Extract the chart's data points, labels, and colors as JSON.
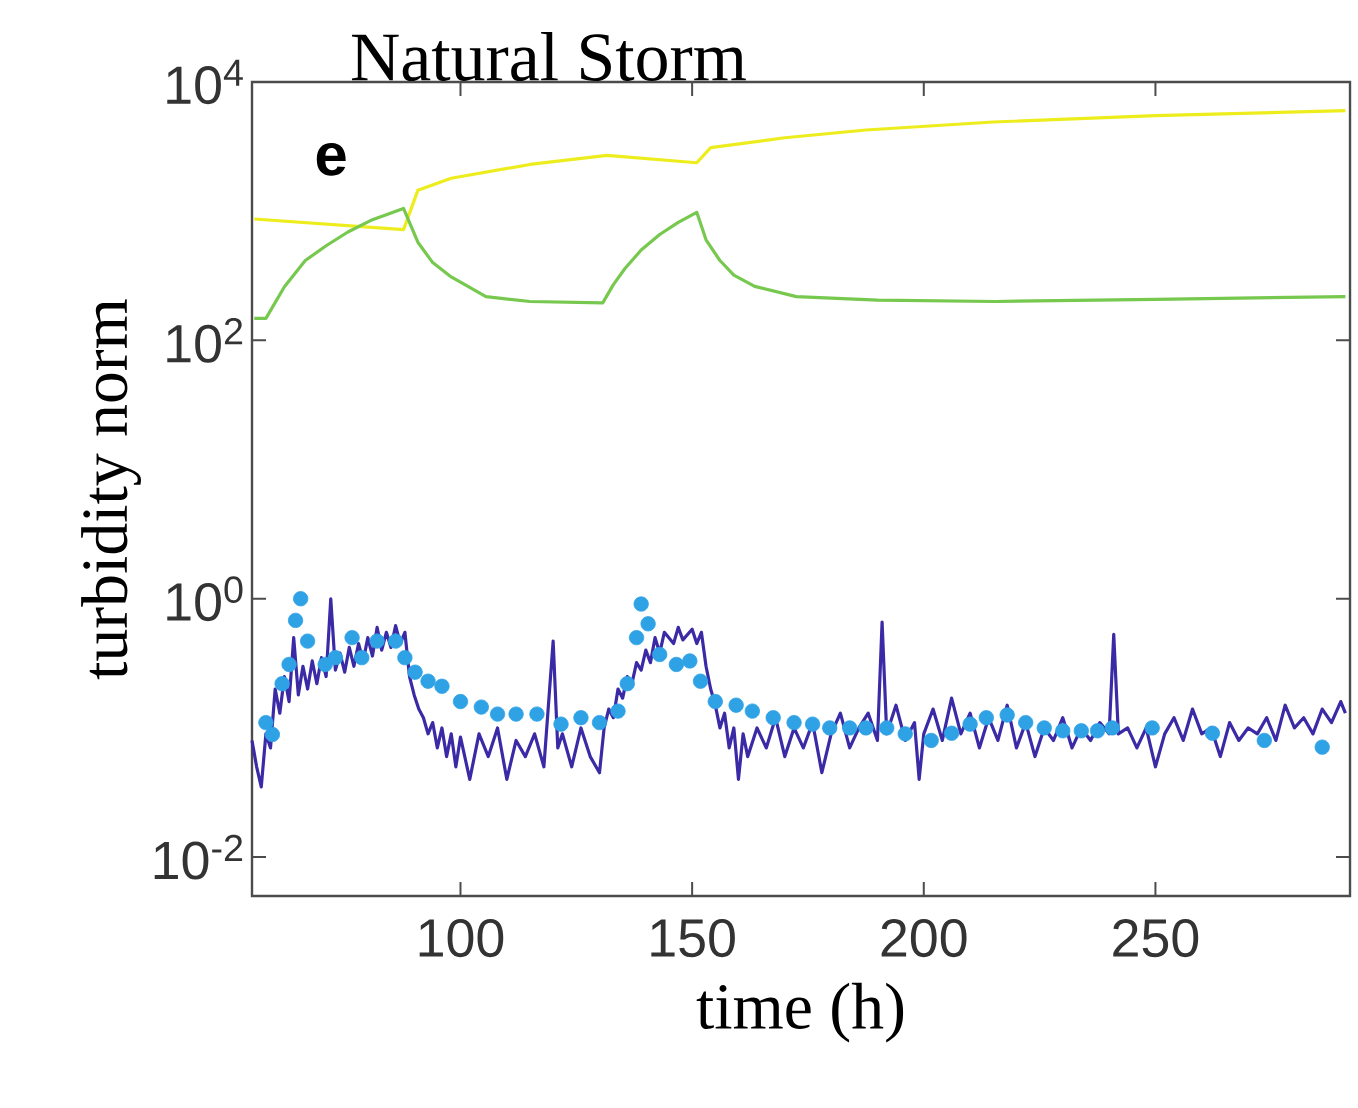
{
  "chart_data": {
    "type": "line",
    "title": "Natural Storm",
    "xlabel": "time (h)",
    "ylabel": "turbidity norm",
    "annotations": [
      "e"
    ],
    "log": "y",
    "grid": false,
    "xlim": [
      55,
      292
    ],
    "ylim": [
      0.005,
      10000
    ],
    "xticks": [
      100,
      150,
      200,
      250
    ],
    "yticks": [
      {
        "value": 0.01,
        "label": "10$^{-2}$"
      },
      {
        "value": 1,
        "label": "10$^{0}$"
      },
      {
        "value": 100,
        "label": "10$^{2}$"
      },
      {
        "value": 10000,
        "label": "10$^{4}$"
      }
    ],
    "series": [
      {
        "color": "#eded1e",
        "x": [
          55.5,
          87.7,
          90.8,
          98,
          115,
          131.6,
          151,
          154,
          170,
          187.5,
          215,
          250,
          291
        ],
        "values": [
          870,
          720,
          1450,
          1800,
          2300,
          2700,
          2370,
          3100,
          3700,
          4250,
          4900,
          5500,
          6000
        ]
      },
      {
        "color": "#76c84e",
        "x": [
          55.5,
          58,
          62,
          66.5,
          71,
          75.7,
          81,
          87.7,
          90.8,
          94,
          98,
          105.5,
          115,
          130.7,
          133,
          135.5,
          139,
          143,
          147,
          151,
          153,
          156,
          159,
          163.5,
          172.5,
          190,
          215.5,
          250,
          291
        ],
        "values": [
          148,
          148,
          260,
          415,
          540,
          690,
          860,
          1050,
          575,
          400,
          310,
          218,
          200,
          195,
          270,
          360,
          500,
          660,
          820,
          980,
          600,
          415,
          320,
          262,
          218,
          205,
          200,
          208,
          218
        ]
      },
      {
        "color": "#3b2aa6",
        "x": [
          55,
          56,
          57,
          58,
          59,
          60,
          61,
          62,
          63,
          64,
          65,
          66,
          67,
          68,
          69,
          70,
          71,
          72,
          73,
          74,
          75,
          76,
          77,
          78,
          79,
          80,
          81,
          82,
          83,
          84,
          85,
          86,
          87,
          88,
          89,
          90,
          91,
          92,
          93,
          94,
          95,
          96,
          97,
          98,
          99,
          100,
          102,
          104,
          106,
          108,
          110,
          112,
          114,
          116,
          118,
          120,
          121,
          122,
          124,
          126,
          128,
          130,
          131,
          132,
          133,
          134,
          135,
          136,
          137,
          138,
          139,
          140,
          141,
          142,
          143,
          144,
          146,
          147,
          148,
          150,
          151,
          152,
          153,
          154,
          155,
          156,
          157,
          158,
          159,
          160,
          161,
          162,
          164,
          166,
          168,
          170,
          172,
          174,
          176,
          178,
          180,
          182,
          184,
          186,
          188,
          190,
          191,
          192,
          194,
          196,
          198,
          199,
          200,
          202,
          204,
          206,
          208,
          210,
          212,
          214,
          216,
          218,
          220,
          222,
          224,
          226,
          228,
          230,
          232,
          234,
          236,
          238,
          240,
          241,
          242,
          244,
          246,
          248,
          250,
          252,
          254,
          256,
          258,
          260,
          262,
          264,
          266,
          268,
          270,
          272,
          274,
          276,
          278,
          280,
          282,
          284,
          286,
          288,
          290,
          291
        ],
        "values": [
          0.08,
          0.05,
          0.035,
          0.09,
          0.07,
          0.2,
          0.13,
          0.25,
          0.16,
          0.5,
          0.18,
          0.3,
          0.2,
          0.33,
          0.22,
          0.35,
          0.25,
          1.0,
          0.28,
          0.38,
          0.27,
          0.42,
          0.3,
          0.45,
          0.33,
          0.5,
          0.36,
          0.6,
          0.4,
          0.55,
          0.42,
          0.62,
          0.45,
          0.55,
          0.25,
          0.18,
          0.14,
          0.12,
          0.09,
          0.11,
          0.07,
          0.1,
          0.06,
          0.09,
          0.05,
          0.085,
          0.04,
          0.09,
          0.06,
          0.1,
          0.04,
          0.08,
          0.06,
          0.09,
          0.05,
          0.47,
          0.07,
          0.09,
          0.05,
          0.1,
          0.06,
          0.045,
          0.1,
          0.14,
          0.12,
          0.2,
          0.17,
          0.25,
          0.22,
          0.32,
          0.28,
          0.4,
          0.32,
          0.5,
          0.38,
          0.55,
          0.45,
          0.6,
          0.48,
          0.58,
          0.45,
          0.55,
          0.3,
          0.2,
          0.15,
          0.1,
          0.13,
          0.07,
          0.1,
          0.04,
          0.09,
          0.06,
          0.1,
          0.07,
          0.12,
          0.06,
          0.1,
          0.07,
          0.11,
          0.045,
          0.09,
          0.13,
          0.07,
          0.1,
          0.13,
          0.08,
          0.66,
          0.09,
          0.15,
          0.08,
          0.11,
          0.04,
          0.09,
          0.14,
          0.08,
          0.17,
          0.09,
          0.13,
          0.07,
          0.12,
          0.08,
          0.15,
          0.07,
          0.11,
          0.06,
          0.1,
          0.08,
          0.12,
          0.07,
          0.1,
          0.08,
          0.11,
          0.09,
          0.53,
          0.09,
          0.1,
          0.07,
          0.1,
          0.05,
          0.09,
          0.12,
          0.08,
          0.14,
          0.09,
          0.1,
          0.06,
          0.11,
          0.08,
          0.1,
          0.09,
          0.12,
          0.08,
          0.15,
          0.1,
          0.12,
          0.09,
          0.14,
          0.11,
          0.16,
          0.13
        ]
      },
      {
        "type": "scatter",
        "color": "#2fa2e6",
        "marker": "circle",
        "x": [
          58,
          59.4,
          61.5,
          63,
          64.4,
          65.5,
          67,
          70.8,
          73,
          76.6,
          78.7,
          82,
          86,
          88,
          90.2,
          93,
          96,
          100,
          104.5,
          108,
          112,
          116.5,
          121.7,
          126,
          130,
          134,
          136,
          138,
          139,
          140.5,
          143,
          146.6,
          149.5,
          151.8,
          155,
          159.5,
          163,
          167.5,
          172,
          176,
          179.7,
          184,
          187.5,
          192,
          196,
          201.6,
          206,
          210,
          213.5,
          218,
          222,
          226,
          230,
          234,
          237.5,
          240.7,
          249.3,
          262.3,
          273.5,
          286
        ],
        "values": [
          0.11,
          0.089,
          0.22,
          0.31,
          0.68,
          1.0,
          0.47,
          0.31,
          0.35,
          0.5,
          0.35,
          0.47,
          0.47,
          0.35,
          0.27,
          0.23,
          0.21,
          0.16,
          0.145,
          0.128,
          0.128,
          0.128,
          0.107,
          0.12,
          0.11,
          0.135,
          0.22,
          0.5,
          0.91,
          0.64,
          0.37,
          0.31,
          0.33,
          0.23,
          0.16,
          0.15,
          0.135,
          0.12,
          0.11,
          0.107,
          0.1,
          0.1,
          0.1,
          0.1,
          0.09,
          0.08,
          0.091,
          0.107,
          0.12,
          0.126,
          0.11,
          0.1,
          0.095,
          0.095,
          0.095,
          0.1,
          0.1,
          0.091,
          0.08,
          0.071
        ]
      }
    ]
  }
}
